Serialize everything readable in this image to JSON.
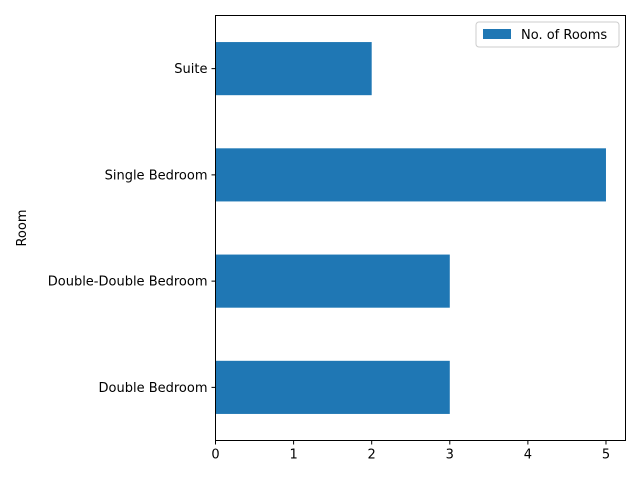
{
  "chart_data": {
    "type": "bar",
    "orientation": "horizontal",
    "categories": [
      "Double Bedroom",
      "Double-Double Bedroom",
      "Single Bedroom",
      "Suite"
    ],
    "series": [
      {
        "name": "No. of Rooms",
        "values": [
          3,
          3,
          5,
          2
        ],
        "color": "#1f77b4"
      }
    ],
    "ylabel": "Room",
    "xlabel": "",
    "xlim": [
      0,
      5.25
    ],
    "xticks": [
      0,
      1,
      2,
      3,
      4,
      5
    ],
    "grid": false,
    "legend": "top-right"
  }
}
